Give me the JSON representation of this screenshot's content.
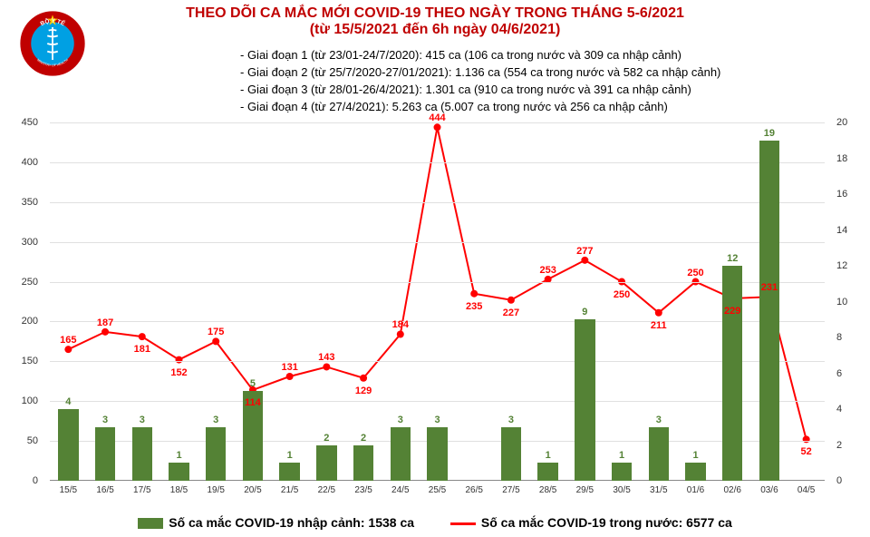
{
  "title": {
    "line1": "THEO DÕI CA MẮC MỚI COVID-19 THEO NGÀY TRONG THÁNG 5-6/2021",
    "line2": "(từ 15/5/2021 đến 6h ngày 04/6/2021)",
    "color": "#c00000",
    "fontsize": 16
  },
  "stages": [
    "- Giai đoạn 1 (từ 23/01-24/7/2020): 415 ca (106 ca trong nước và 309 ca nhập cảnh)",
    "- Giai đoạn 2 (từ 25/7/2020-27/01/2021): 1.136 ca (554 ca trong nước và 582 ca nhập cảnh)",
    "- Giai đoạn 3 (từ 28/01-26/4/2021): 1.301 ca (910 ca trong nước và 391 ca nhập cảnh)",
    "- Giai đoạn 4 (từ 27/4/2021): 5.263 ca (5.007 ca trong nước và 256 ca nhập cảnh)"
  ],
  "chart": {
    "type": "bar+line-dual-axis",
    "categories": [
      "15/5",
      "16/5",
      "17/5",
      "18/5",
      "19/5",
      "20/5",
      "21/5",
      "22/5",
      "23/5",
      "24/5",
      "25/5",
      "26/5",
      "27/5",
      "28/5",
      "29/5",
      "30/5",
      "31/5",
      "01/6",
      "02/6",
      "03/6",
      "04/5"
    ],
    "bars": {
      "values": [
        4,
        3,
        3,
        1,
        3,
        5,
        1,
        2,
        2,
        3,
        3,
        null,
        3,
        1,
        9,
        1,
        3,
        1,
        12,
        19,
        null
      ],
      "color": "#548235",
      "label_color": "#548235",
      "axis": "right",
      "width_ratio": 0.55
    },
    "line": {
      "values": [
        165,
        187,
        181,
        152,
        175,
        114,
        131,
        143,
        129,
        184,
        444,
        235,
        227,
        253,
        277,
        250,
        211,
        250,
        229,
        231,
        52
      ],
      "color": "#ff0000",
      "label_color": "#ff0000",
      "axis": "left",
      "line_width": 2,
      "marker_size": 4
    },
    "y_left": {
      "min": 0,
      "max": 450,
      "step": 50
    },
    "y_right": {
      "min": 0,
      "max": 20,
      "step": 2
    },
    "grid_color": "#e0e0e0",
    "background_color": "#ffffff"
  },
  "legend": {
    "bar": "Số ca mắc COVID-19 nhập cảnh: 1538 ca",
    "line": "Số ca mắc COVID-19 trong nước: 6577 ca"
  },
  "logo": {
    "outer_color": "#c00000",
    "inner_color": "#00a0e3",
    "star_color": "#ffcc00",
    "text_top": "BỘ Y TẾ",
    "text_bottom": "MINISTRY OF HEALTH"
  }
}
